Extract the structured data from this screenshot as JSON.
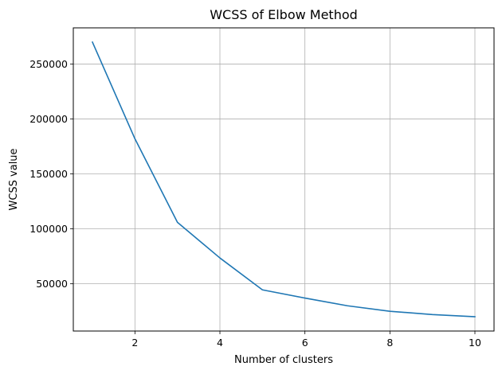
{
  "chart_data": {
    "type": "line",
    "title": "WCSS of Elbow Method",
    "xlabel": "Number of clusters",
    "ylabel": "WCSS value",
    "x": [
      1,
      2,
      3,
      4,
      5,
      6,
      7,
      8,
      9,
      10
    ],
    "series": [
      {
        "values": [
          270000,
          182000,
          106000,
          73500,
          44500,
          37000,
          30000,
          25000,
          22000,
          20000
        ],
        "color": "#1f77b4"
      }
    ],
    "xlim": [
      0.55,
      10.45
    ],
    "ylim": [
      7000,
      283000
    ],
    "xticks": [
      2,
      4,
      6,
      8,
      10
    ],
    "xtick_labels": [
      "2",
      "4",
      "6",
      "8",
      "10"
    ],
    "yticks": [
      50000,
      100000,
      150000,
      200000,
      250000
    ],
    "ytick_labels": [
      "50000",
      "100000",
      "150000",
      "200000",
      "250000"
    ],
    "grid": true,
    "grid_color": "#b0b0b0",
    "legend": false
  }
}
